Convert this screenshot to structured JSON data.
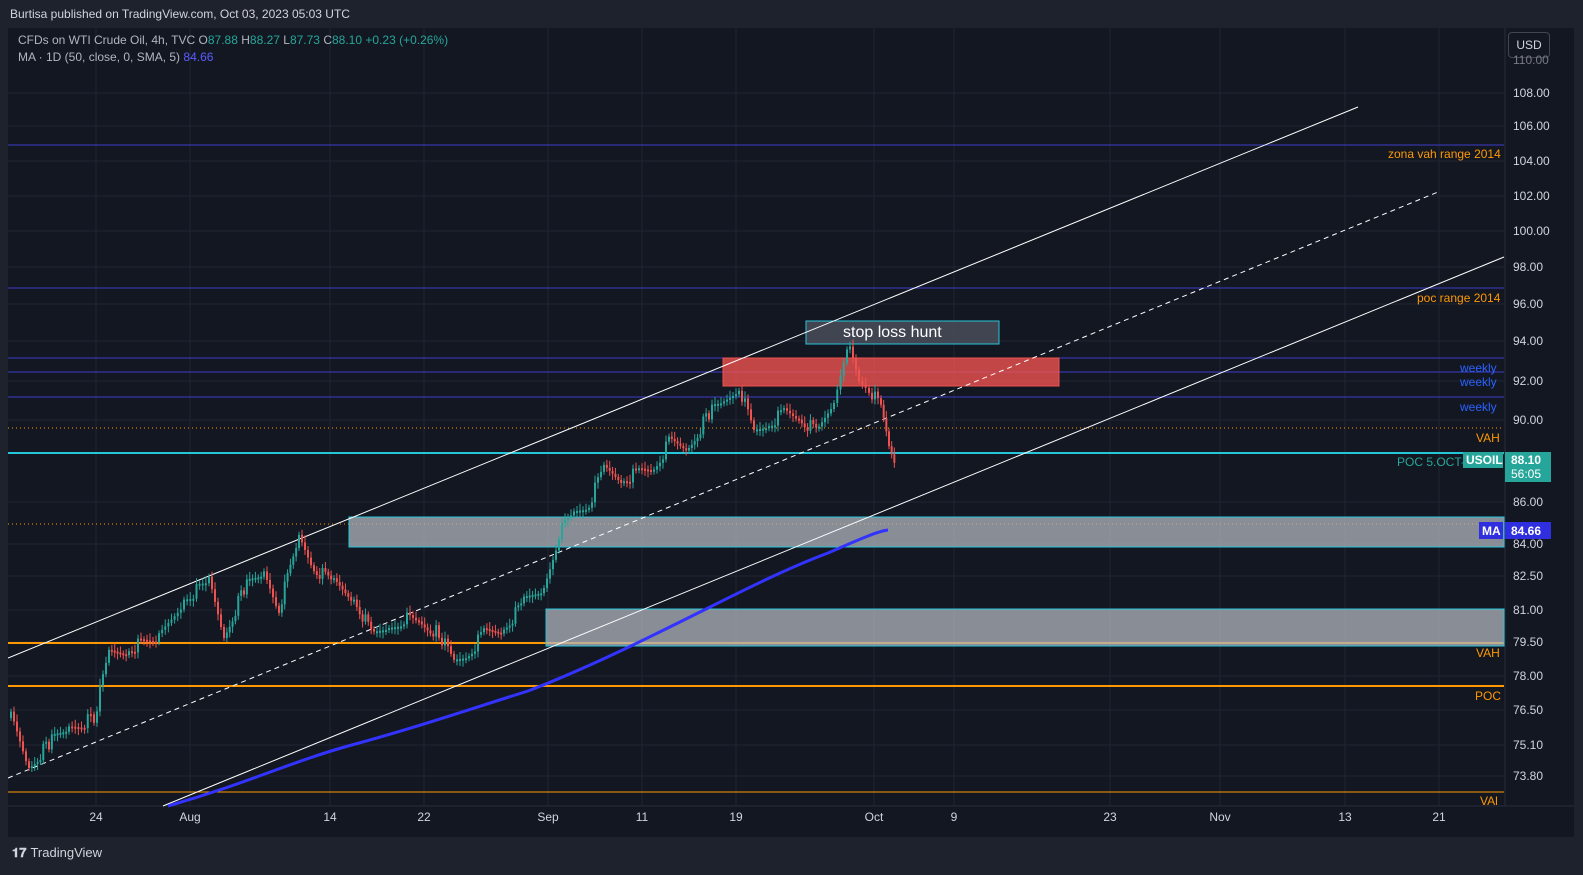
{
  "header": {
    "published_by": "Burtisa published on TradingView.com, Oct 03, 2023 05:03 UTC"
  },
  "legend": {
    "symbol": "CFDs on WTI Crude Oil, 4h, TVC",
    "o_label": "O",
    "o": "87.88",
    "h_label": "H",
    "h": "88.27",
    "l_label": "L",
    "l": "87.73",
    "c_label": "C",
    "c": "88.10",
    "change": "+0.23 (+0.26%)",
    "ma_text": "MA · 1D (50, close, 0, SMA, 5)",
    "ma_value": "84.66"
  },
  "currency_button": "USD",
  "price_axis": {
    "ticks": [
      "108.00",
      "106.00",
      "104.00",
      "102.00",
      "100.00",
      "98.00",
      "96.00",
      "94.00",
      "92.00",
      "90.00",
      "86.00",
      "84.00",
      "82.50",
      "81.00",
      "79.50",
      "78.00",
      "76.50",
      "75.10",
      "73.80"
    ],
    "top_partial": "110.00"
  },
  "time_axis": {
    "ticks": [
      "24",
      "Aug",
      "14",
      "22",
      "Sep",
      "11",
      "19",
      "Oct",
      "9",
      "23",
      "Nov",
      "13",
      "21"
    ]
  },
  "annotations": {
    "zona_vah": "zona vah range 2014",
    "poc_range": "poc range 2014",
    "weekly_1": "weekly",
    "weekly_2": "weekly",
    "weekly_3": "weekly",
    "vah_top": "VAH",
    "poc_oct": "POC 5.OCT-",
    "vah_bottom": "VAH",
    "poc_bottom": "POC",
    "val": "VAl",
    "stop_loss": "stop loss hunt"
  },
  "price_tags": {
    "symbol": "USOIL",
    "last_price": "88.10",
    "countdown": "56:05",
    "ma_label": "MA",
    "ma_price": "84.66"
  },
  "footer": {
    "logo": "TradingView"
  },
  "colors": {
    "background": "#131722",
    "up": "#26a69a",
    "down": "#ef5350",
    "ma": "#3333ff",
    "levels": "#ff9800",
    "weekly": "#2962ff"
  }
}
